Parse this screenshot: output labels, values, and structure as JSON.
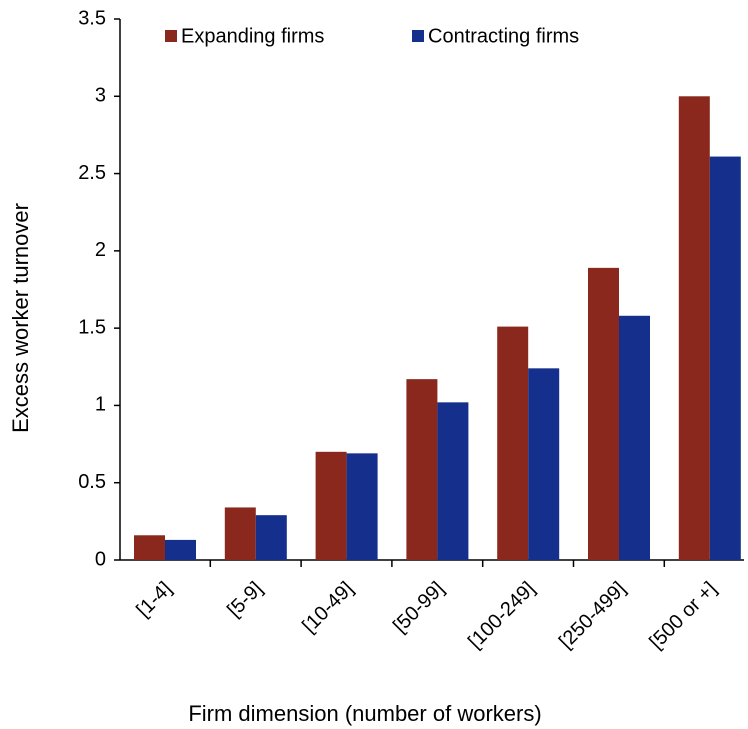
{
  "chart_data": {
    "type": "bar",
    "categories": [
      "[1-4]",
      "[5-9]",
      "[10-49]",
      "[50-99]",
      "[100-249]",
      "[250-499]",
      "[500 or +]"
    ],
    "series": [
      {
        "name": "Expanding firms",
        "color": "#8b281e",
        "values": [
          0.16,
          0.34,
          0.7,
          1.17,
          1.51,
          1.89,
          3.0
        ]
      },
      {
        "name": "Contracting firms",
        "color": "#142f8c",
        "values": [
          0.13,
          0.29,
          0.69,
          1.02,
          1.24,
          1.58,
          2.61
        ]
      }
    ],
    "x_label": "Firm dimension (number of workers)",
    "y_label": "Excess worker turnover",
    "ylim": [
      0,
      3.5
    ],
    "yticks": [
      0,
      0.5,
      1,
      1.5,
      2,
      2.5,
      3,
      3.5
    ],
    "grid": false,
    "legend": "top"
  }
}
